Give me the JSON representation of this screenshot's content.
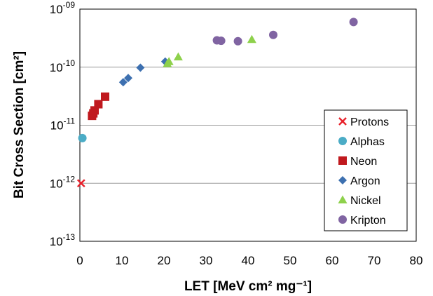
{
  "chart_data": {
    "type": "scatter",
    "xlabel": "LET [MeV cm² mg⁻¹]",
    "ylabel": "Bit Cross Section [cm²]",
    "xlim": [
      0,
      80
    ],
    "xticks": [
      "0",
      "10",
      "20",
      "30",
      "40",
      "50",
      "60",
      "70",
      "80"
    ],
    "y_scale": "log",
    "ylim": [
      1e-13,
      1e-09
    ],
    "yticks": [
      {
        "base": "10",
        "exp": "-13",
        "value": 1e-13
      },
      {
        "base": "10",
        "exp": "-12",
        "value": 1e-12
      },
      {
        "base": "10",
        "exp": "-11",
        "value": 1e-11
      },
      {
        "base": "10",
        "exp": "-10",
        "value": 1e-10
      },
      {
        "base": "10",
        "exp": "-09",
        "value": 1e-09
      }
    ],
    "grid": "horizontal major gridlines",
    "legend_position": "lower-right",
    "series": [
      {
        "name": "Protons",
        "marker": "x",
        "color": "#e8202a",
        "points": [
          {
            "x": 0.3,
            "y": 1e-12
          }
        ]
      },
      {
        "name": "Alphas",
        "marker": "circle",
        "color": "#4bacc6",
        "points": [
          {
            "x": 0.6,
            "y": 6e-12
          }
        ]
      },
      {
        "name": "Neon",
        "marker": "square",
        "color": "#c0191e",
        "points": [
          {
            "x": 2.9,
            "y": 1.45e-11
          },
          {
            "x": 3.2,
            "y": 1.6e-11
          },
          {
            "x": 3.5,
            "y": 1.8e-11
          },
          {
            "x": 4.4,
            "y": 2.3e-11
          },
          {
            "x": 6.0,
            "y": 3.1e-11
          }
        ]
      },
      {
        "name": "Argon",
        "marker": "diamond",
        "color": "#3d70b0",
        "points": [
          {
            "x": 10.3,
            "y": 5.5e-11
          },
          {
            "x": 11.5,
            "y": 6.5e-11
          },
          {
            "x": 14.4,
            "y": 9.8e-11
          },
          {
            "x": 20.3,
            "y": 1.25e-10
          }
        ]
      },
      {
        "name": "Nickel",
        "marker": "triangle",
        "color": "#8ed14c",
        "points": [
          {
            "x": 20.8,
            "y": 1.15e-10
          },
          {
            "x": 21.2,
            "y": 1.25e-10
          },
          {
            "x": 23.4,
            "y": 1.5e-10
          },
          {
            "x": 40.9,
            "y": 3e-10
          }
        ]
      },
      {
        "name": "Kripton",
        "marker": "circle",
        "color": "#8064a2",
        "points": [
          {
            "x": 32.6,
            "y": 2.9e-10
          },
          {
            "x": 33.6,
            "y": 2.85e-10
          },
          {
            "x": 37.6,
            "y": 2.8e-10
          },
          {
            "x": 46.0,
            "y": 3.6e-10
          },
          {
            "x": 65.1,
            "y": 6e-10
          }
        ]
      }
    ]
  }
}
